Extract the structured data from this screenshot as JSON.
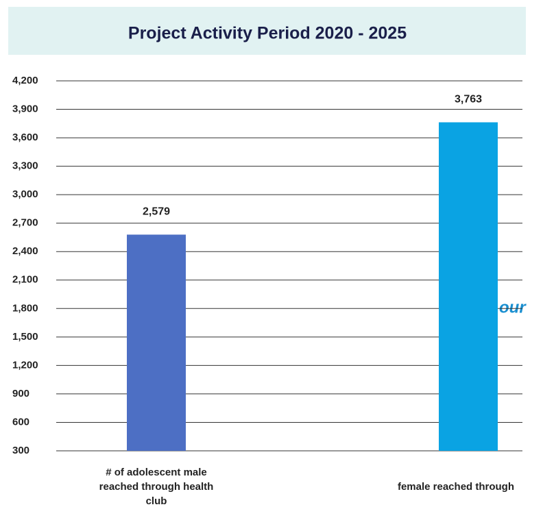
{
  "chart_data": {
    "type": "bar",
    "title": "Project Activity Period 2020 - 2025",
    "categories": [
      "# of adolescent male reached through health club",
      "female reached through"
    ],
    "series": [
      {
        "name": null,
        "colors": [
          "#4d6fc4",
          "#0aa3e3"
        ],
        "values": [
          2579,
          3763
        ],
        "value_labels": [
          "2,579",
          "3,763"
        ]
      }
    ],
    "ylim": [
      300,
      4200
    ],
    "yticks": [
      300,
      600,
      900,
      {
        "value": 1200,
        "label": "1,200"
      },
      {
        "value": 1500,
        "label": "1,500"
      },
      {
        "value": 1800,
        "label": "1,800"
      },
      {
        "value": 2100,
        "label": "2,100"
      },
      {
        "value": 2400,
        "label": "2,400"
      },
      {
        "value": 2700,
        "label": "2,700"
      },
      {
        "value": 3000,
        "label": "3,000"
      },
      {
        "value": 3300,
        "label": "3,300"
      },
      {
        "value": 3600,
        "label": "3,600"
      },
      {
        "value": 3900,
        "label": "3,900"
      },
      {
        "value": 4200,
        "label": "4,200"
      }
    ],
    "grid": true,
    "annotations": [
      "our"
    ]
  }
}
